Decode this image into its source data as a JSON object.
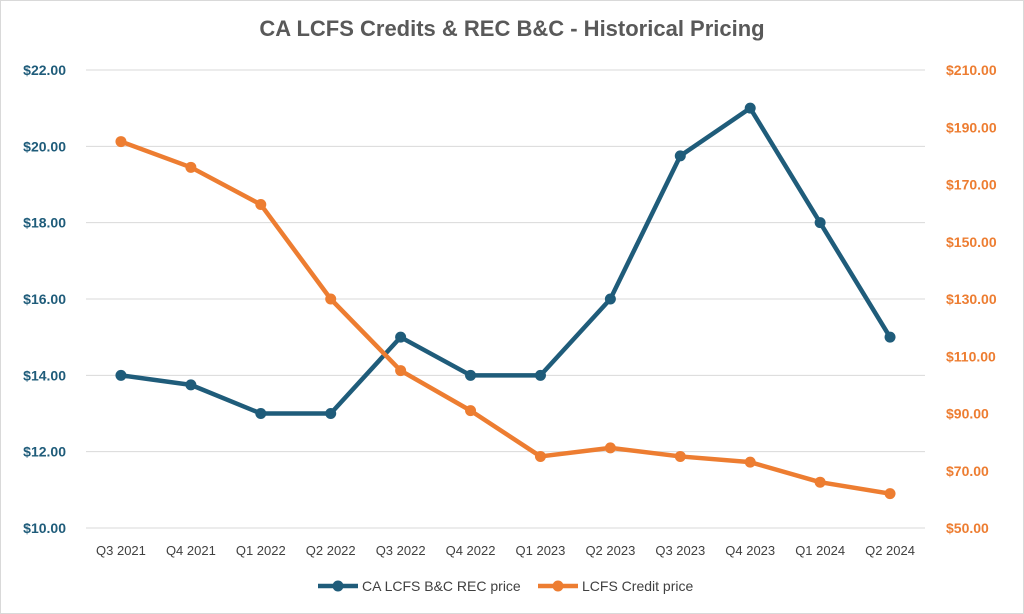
{
  "chart_data": {
    "type": "line",
    "title": "CA LCFS Credits & REC B&C - Historical Pricing",
    "categories": [
      "Q3 2021",
      "Q4 2021",
      "Q1 2022",
      "Q2 2022",
      "Q3 2022",
      "Q4 2022",
      "Q1 2023",
      "Q2 2023",
      "Q3 2023",
      "Q4 2023",
      "Q1 2024",
      "Q2 2024"
    ],
    "series": [
      {
        "name": "CA LCFS B&C REC price",
        "axis": "left",
        "color": "#1f5c7a",
        "values": [
          14.0,
          13.75,
          13.0,
          13.0,
          15.0,
          14.0,
          14.0,
          16.0,
          19.75,
          21.0,
          18.0,
          15.0
        ]
      },
      {
        "name": "LCFS Credit price",
        "axis": "right",
        "color": "#ed7d31",
        "values": [
          185,
          176,
          163,
          130,
          105,
          91,
          75,
          78,
          75,
          73,
          66,
          62
        ]
      }
    ],
    "y_left": {
      "range": [
        10,
        22
      ],
      "ticks": [
        "$22.00",
        "$20.00",
        "$18.00",
        "$16.00",
        "$14.00",
        "$12.00",
        "$10.00"
      ],
      "tick_values": [
        22,
        20,
        18,
        16,
        14,
        12,
        10
      ],
      "color": "#1f5c7a"
    },
    "y_right": {
      "range": [
        50,
        210
      ],
      "ticks": [
        "$210.00",
        "$190.00",
        "$170.00",
        "$150.00",
        "$130.00",
        "$110.00",
        "$90.00",
        "$70.00",
        "$50.00"
      ],
      "tick_values": [
        210,
        190,
        170,
        150,
        130,
        110,
        90,
        70,
        50
      ],
      "color": "#ed7d31"
    },
    "grid": true,
    "legend_position": "bottom"
  }
}
